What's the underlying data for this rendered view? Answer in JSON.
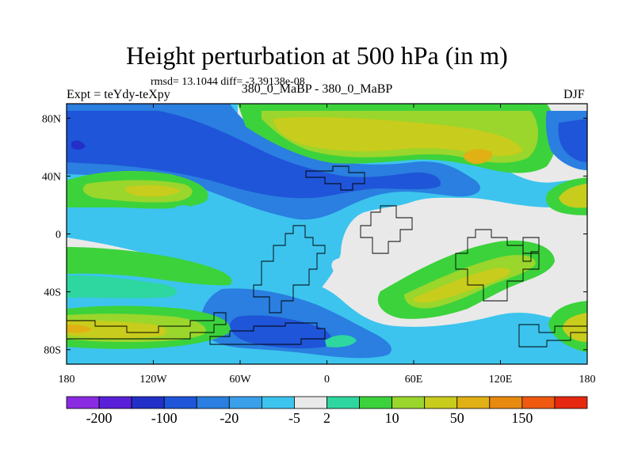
{
  "chart_data": {
    "type": "heatmap",
    "title": "Height perturbation at 500 hPa (in m)",
    "stats_line": "rmsd= 13.1044 diff= -3.39138e-08",
    "left_label": "Expt = teYdy-teXpy",
    "center_label": "380_0_MaBP - 380_0_MaBP",
    "right_label": "DJF",
    "xlim": [
      -180,
      180
    ],
    "ylim": [
      -90,
      90
    ],
    "x_ticks": [
      {
        "value": -180,
        "label": "180"
      },
      {
        "value": -120,
        "label": "120W"
      },
      {
        "value": -60,
        "label": "60W"
      },
      {
        "value": 0,
        "label": "0"
      },
      {
        "value": 60,
        "label": "60E"
      },
      {
        "value": 120,
        "label": "120E"
      },
      {
        "value": 180,
        "label": "180"
      }
    ],
    "y_ticks": [
      {
        "value": 80,
        "label": "80N"
      },
      {
        "value": 40,
        "label": "40N"
      },
      {
        "value": 0,
        "label": "0"
      },
      {
        "value": -40,
        "label": "40S"
      },
      {
        "value": -80,
        "label": "80S"
      }
    ],
    "colorbar": {
      "colors": [
        "#8a2be2",
        "#5a20d8",
        "#2230c8",
        "#1f55d8",
        "#2a7fe0",
        "#3aa0ea",
        "#3cc4ee",
        "#e9e9e9",
        "#2ed6a0",
        "#3cd23c",
        "#9ad62c",
        "#c8cc1c",
        "#e0b014",
        "#e88a10",
        "#ee5a10",
        "#e62810"
      ],
      "labels": [
        {
          "after": 1,
          "text": "-200"
        },
        {
          "after": 3,
          "text": "-100"
        },
        {
          "after": 5,
          "text": "-20"
        },
        {
          "after": 7,
          "text": "-5"
        },
        {
          "after": 8,
          "text": "2"
        },
        {
          "after": 10,
          "text": "10"
        },
        {
          "after": 12,
          "text": "50"
        },
        {
          "after": 14,
          "text": "150"
        }
      ]
    },
    "regions": [
      {
        "name": "north-polar-negative-core",
        "level": -20,
        "lon": -175,
        "lat": 68
      },
      {
        "name": "north-atlantic-negative-band",
        "level": -20,
        "lon": 0,
        "lat": 48
      },
      {
        "name": "arctic-positive-anomaly",
        "level": 50,
        "lon": 80,
        "lat": 70
      },
      {
        "name": "arctic-positive-max",
        "level": 100,
        "lon": 105,
        "lat": 60
      },
      {
        "name": "north-pacific-positive",
        "level": 20,
        "lon": -160,
        "lat": 37
      },
      {
        "name": "east-asia-positive",
        "level": 20,
        "lon": 170,
        "lat": 32
      },
      {
        "name": "southern-pacific-positive",
        "level": 30,
        "lon": -170,
        "lat": -75
      },
      {
        "name": "southern-atlantic-negative",
        "level": -20,
        "lon": -30,
        "lat": -72
      },
      {
        "name": "indian-ocean-positive",
        "level": 20,
        "lon": 90,
        "lat": -45
      },
      {
        "name": "south-pacific-east-positive",
        "level": 20,
        "lon": 170,
        "lat": -65
      }
    ]
  }
}
